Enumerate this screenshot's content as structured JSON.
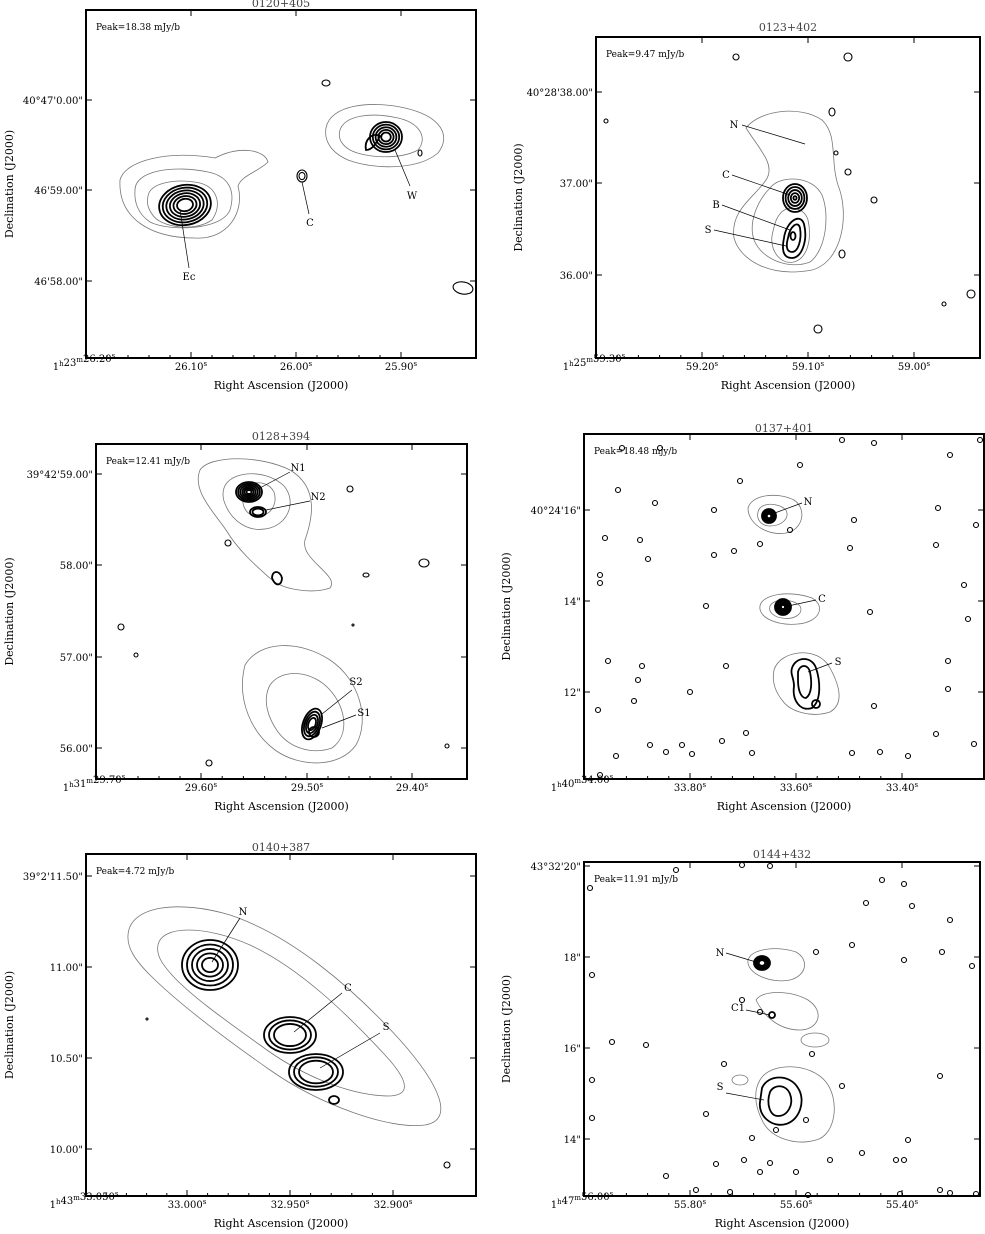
{
  "chart_data": [
    {
      "type": "contour",
      "title": "0120+405",
      "annotations": {
        "peak": "Peak=18.38 mJy/b"
      },
      "xlabel": "Right Ascension (J2000)",
      "ylabel": "Declination (J2000)",
      "xticks": [
        "1h23m26.20s",
        "26.10s",
        "26.00s",
        "25.90s"
      ],
      "yticks": [
        "40°47'0.00\"",
        "46'59.00\"",
        "46'58.00\""
      ],
      "components": [
        "Ec",
        "C",
        "W"
      ]
    },
    {
      "type": "contour",
      "title": "0123+402",
      "annotations": {
        "peak": "Peak=9.47 mJy/b"
      },
      "xlabel": "Right Ascension (J2000)",
      "ylabel": "Declination (J2000)",
      "xticks": [
        "1h25m59.30s",
        "59.20s",
        "59.10s",
        "59.00s"
      ],
      "yticks": [
        "40°28'38.00\"",
        "37.00\"",
        "36.00\""
      ],
      "components": [
        "N",
        "C",
        "B",
        "S"
      ]
    },
    {
      "type": "contour",
      "title": "0128+394",
      "annotations": {
        "peak": "Peak=12.41 mJy/b"
      },
      "xlabel": "Right Ascension (J2000)",
      "ylabel": "Declination (J2000)",
      "xticks": [
        "1h31m29.70s",
        "29.60s",
        "29.50s",
        "29.40s"
      ],
      "yticks": [
        "39°42'59.00\"",
        "58.00\"",
        "57.00\"",
        "56.00\""
      ],
      "components": [
        "N1",
        "N2",
        "S2",
        "S1"
      ]
    },
    {
      "type": "contour",
      "title": "0137+401",
      "annotations": {
        "peak": "Peak=18.48 mjy/b"
      },
      "xlabel": "Right Ascension (J2000)",
      "ylabel": "Declination (J2000)",
      "xticks": [
        "1h40m34.00s",
        "33.80s",
        "33.60s",
        "33.40s"
      ],
      "yticks": [
        "40°24'16\"",
        "14\"",
        "12\""
      ],
      "components": [
        "N",
        "C",
        "S"
      ]
    },
    {
      "type": "contour",
      "title": "0140+387",
      "annotations": {
        "peak": "Peak=4.72 mJy/b"
      },
      "xlabel": "Right Ascension (J2000)",
      "ylabel": "Declination (J2000)",
      "xticks": [
        "1h43m33.050s",
        "33.000s",
        "32.950s",
        "32.900s"
      ],
      "yticks": [
        "39°2'11.50\"",
        "11.00\"",
        "10.50\"",
        "10.00\""
      ],
      "components": [
        "N",
        "C",
        "S"
      ]
    },
    {
      "type": "contour",
      "title": "0144+432",
      "annotations": {
        "peak": "Peak=11.91 mJy/b"
      },
      "xlabel": "Right Ascension (J2000)",
      "ylabel": "Declination (J2000)",
      "xticks": [
        "1h47m56.00s",
        "55.80s",
        "55.60s",
        "55.40s"
      ],
      "yticks": [
        "43°32'20\"",
        "18\"",
        "16\"",
        "14\""
      ],
      "components": [
        "N",
        "C1",
        "S"
      ]
    }
  ]
}
